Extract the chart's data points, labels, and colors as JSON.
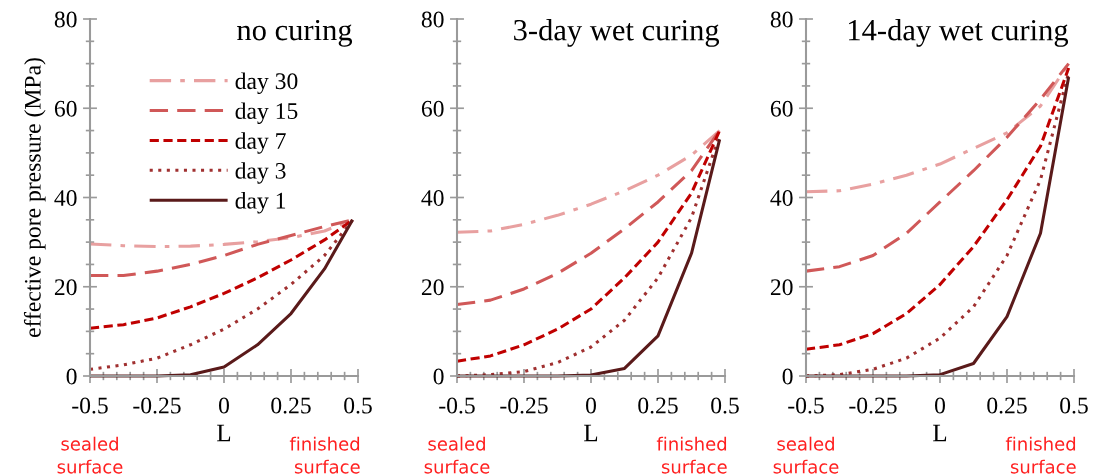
{
  "chart_data": [
    {
      "type": "line",
      "title": "no curing",
      "ylabel": "effective pore pressure (MPa)",
      "xlabel": "L",
      "xlim": [
        -0.5,
        0.5
      ],
      "xticks": [
        -0.5,
        -0.25,
        0,
        0.25,
        0.5
      ],
      "ylim": [
        0,
        80
      ],
      "yticks": [
        0,
        20,
        40,
        60,
        80
      ],
      "grid": false,
      "legend": "top",
      "annotations": [
        "sealed\nsurface",
        "finished\nsurface"
      ],
      "x": [
        -0.5,
        -0.375,
        -0.25,
        -0.125,
        0,
        0.125,
        0.25,
        0.375,
        0.48
      ],
      "series": [
        {
          "name": "day 30",
          "color": "#e8a0a0",
          "line_style": "dashdot",
          "values": [
            29.6,
            29.2,
            29,
            29.1,
            29.5,
            30.1,
            31,
            32.5,
            35
          ]
        },
        {
          "name": "day 15",
          "color": "#d05858",
          "line_style": "longdash",
          "values": [
            22.5,
            22.5,
            23.5,
            25,
            27,
            29.5,
            31.5,
            33.5,
            35
          ]
        },
        {
          "name": "day 7",
          "color": "#c00000",
          "line_style": "dashed",
          "values": [
            10.7,
            11.5,
            13,
            15.5,
            18.5,
            22,
            26,
            30.5,
            35
          ]
        },
        {
          "name": "day 3",
          "color": "#a03030",
          "line_style": "dotted",
          "values": [
            1.5,
            2.5,
            4,
            7,
            10.5,
            15,
            20.5,
            27,
            35
          ]
        },
        {
          "name": "day 1",
          "color": "#5a1a1a",
          "line_style": "solid",
          "values": [
            0,
            0,
            0,
            0.3,
            2,
            7,
            14,
            24,
            35
          ]
        }
      ]
    },
    {
      "type": "line",
      "title": "3-day wet curing",
      "xlabel": "L",
      "xlim": [
        -0.5,
        0.5
      ],
      "xticks": [
        -0.5,
        -0.25,
        0,
        0.25,
        0.5
      ],
      "ylim": [
        0,
        80
      ],
      "yticks": [
        0,
        20,
        40,
        60,
        80
      ],
      "grid": false,
      "annotations": [
        "sealed\nsurface",
        "finished\nsurface"
      ],
      "x": [
        -0.5,
        -0.375,
        -0.25,
        -0.125,
        0,
        0.125,
        0.25,
        0.375,
        0.48
      ],
      "series": [
        {
          "color": "#e8a0a0",
          "line_style": "dashdot",
          "values": [
            32.2,
            32.5,
            34,
            36,
            38.5,
            41.5,
            45,
            49.5,
            55
          ]
        },
        {
          "color": "#d05858",
          "line_style": "longdash",
          "values": [
            16,
            17,
            19.5,
            23,
            27.5,
            33,
            39,
            46,
            55
          ]
        },
        {
          "color": "#c00000",
          "line_style": "dashed",
          "values": [
            3.3,
            4.5,
            7,
            10.5,
            15,
            22,
            30,
            41,
            55
          ]
        },
        {
          "color": "#a03030",
          "line_style": "dotted",
          "values": [
            0,
            0.3,
            1,
            3,
            6.5,
            12.5,
            22,
            35.5,
            54
          ]
        },
        {
          "color": "#5a1a1a",
          "line_style": "solid",
          "values": [
            0,
            0,
            0,
            0,
            0.2,
            1.7,
            9,
            27.5,
            53
          ]
        }
      ]
    },
    {
      "type": "line",
      "title": "14-day wet curing",
      "xlabel": "L",
      "xlim": [
        -0.5,
        0.5
      ],
      "xticks": [
        -0.5,
        -0.25,
        0,
        0.25,
        0.5
      ],
      "ylim": [
        0,
        80
      ],
      "yticks": [
        0,
        20,
        40,
        60,
        80
      ],
      "grid": false,
      "annotations": [
        "sealed\nsurface",
        "finished\nsurface"
      ],
      "x": [
        -0.5,
        -0.375,
        -0.25,
        -0.125,
        0,
        0.125,
        0.25,
        0.375,
        0.48
      ],
      "series": [
        {
          "color": "#e8a0a0",
          "line_style": "dashdot",
          "values": [
            41.3,
            41.5,
            43,
            45,
            47.5,
            51,
            54.5,
            60.5,
            70
          ]
        },
        {
          "color": "#d05858",
          "line_style": "longdash",
          "values": [
            23.5,
            24.5,
            27,
            32,
            39,
            46,
            53.5,
            62,
            70
          ]
        },
        {
          "color": "#c00000",
          "line_style": "dashed",
          "values": [
            6,
            7,
            9.5,
            14,
            20.5,
            29,
            39.5,
            51.5,
            69
          ]
        },
        {
          "color": "#a03030",
          "line_style": "dotted",
          "values": [
            0,
            0.3,
            1.5,
            4,
            8.5,
            15.5,
            27,
            44,
            68
          ]
        },
        {
          "color": "#5a1a1a",
          "line_style": "solid",
          "values": [
            0,
            0,
            0,
            0,
            0.3,
            2.8,
            13.3,
            32,
            67
          ]
        }
      ]
    }
  ]
}
